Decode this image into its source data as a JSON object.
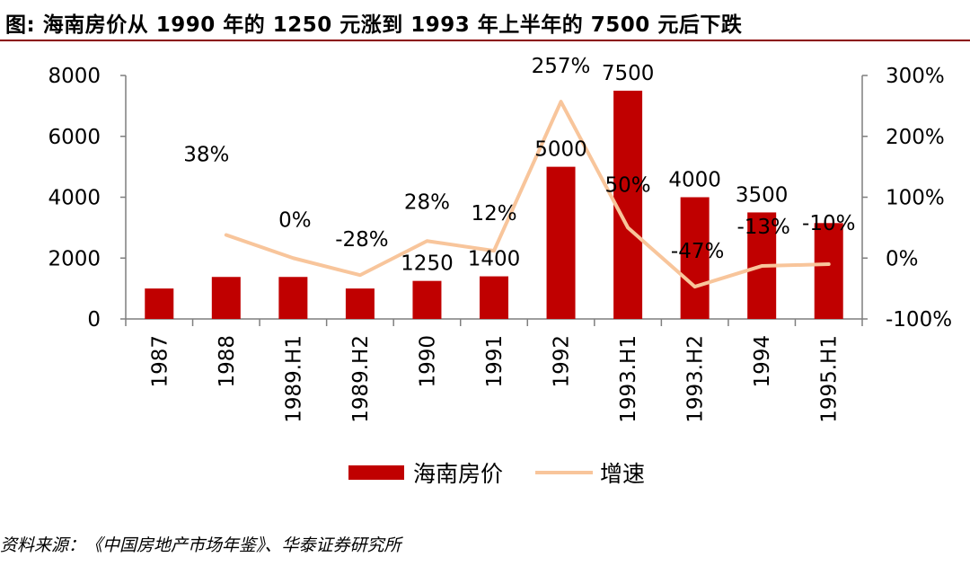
{
  "title": "图: 海南房价从 1990 年的 1250 元涨到 1993 年上半年的 7500 元后下跌",
  "source": "资料来源：《中国房地产市场年鉴》、华泰证券研究所",
  "colors": {
    "bar": "#c00000",
    "line": "#f8c59b",
    "title_rule": "#8b0000"
  },
  "chart_data": {
    "type": "bar",
    "categories": [
      "1987",
      "1988",
      "1989.H1",
      "1989.H2",
      "1990",
      "1991",
      "1992",
      "1993.H1",
      "1993.H2",
      "1994",
      "1995.H1"
    ],
    "series": [
      {
        "name": "海南房价",
        "type": "bar",
        "axis": "left",
        "values": [
          1000,
          1380,
          1380,
          1000,
          1250,
          1400,
          5000,
          7500,
          4000,
          3500,
          3150
        ],
        "data_labels": [
          {
            "index": 4,
            "text": "1250"
          },
          {
            "index": 5,
            "text": "1400"
          },
          {
            "index": 6,
            "text": "5000"
          },
          {
            "index": 7,
            "text": "7500"
          },
          {
            "index": 8,
            "text": "4000"
          },
          {
            "index": 9,
            "text": "3500"
          }
        ]
      },
      {
        "name": "增速",
        "type": "line",
        "axis": "right",
        "values": [
          null,
          38,
          0,
          -28,
          28,
          12,
          257,
          50,
          -47,
          -13,
          -10
        ],
        "data_labels": [
          {
            "index": 1,
            "text": "38%"
          },
          {
            "index": 2,
            "text": "0%"
          },
          {
            "index": 3,
            "text": "-28%"
          },
          {
            "index": 4,
            "text": "28%"
          },
          {
            "index": 5,
            "text": "12%"
          },
          {
            "index": 6,
            "text": "257%"
          },
          {
            "index": 7,
            "text": "50%"
          },
          {
            "index": 8,
            "text": "-47%"
          },
          {
            "index": 9,
            "text": "-13%"
          },
          {
            "index": 10,
            "text": "-10%"
          }
        ]
      }
    ],
    "y_left": {
      "min": 0,
      "max": 8000,
      "ticks": [
        "0",
        "2000",
        "4000",
        "6000",
        "8000"
      ]
    },
    "y_right": {
      "min": -100,
      "max": 300,
      "ticks": [
        "-100%",
        "0%",
        "100%",
        "200%",
        "300%"
      ]
    },
    "legend": {
      "position": "bottom",
      "entries": [
        "海南房价",
        "增速"
      ]
    },
    "grid": false
  }
}
